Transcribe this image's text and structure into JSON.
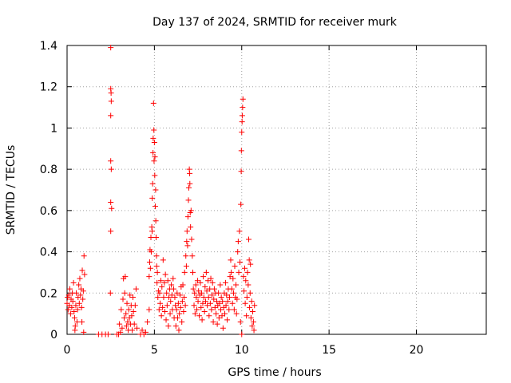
{
  "chart_data": {
    "type": "scatter",
    "title": "Day 137 of 2024, SRMTID for receiver murk",
    "xlabel": "GPS time / hours",
    "ylabel": "SRMTID / TECUs",
    "xlim": [
      0,
      24
    ],
    "ylim": [
      0,
      1.4
    ],
    "x_ticks": [
      0,
      5,
      10,
      15,
      20
    ],
    "x_tick_labels": [
      "0",
      "5",
      "10",
      "15",
      "20"
    ],
    "y_ticks": [
      0,
      0.2,
      0.4,
      0.6,
      0.8,
      1.0,
      1.2,
      1.4
    ],
    "y_tick_labels": [
      "0",
      "0.2",
      "0.4",
      "0.6",
      "0.8",
      "1",
      "1.2",
      "1.4"
    ],
    "grid": true,
    "marker": "plus",
    "color": "#ff0000",
    "series": [
      {
        "name": "",
        "points": [
          [
            0.0,
            0.15
          ],
          [
            0.03,
            0.18
          ],
          [
            0.06,
            0.12
          ],
          [
            0.1,
            0.19
          ],
          [
            0.13,
            0.14
          ],
          [
            0.16,
            0.22
          ],
          [
            0.2,
            0.1
          ],
          [
            0.23,
            0.17
          ],
          [
            0.27,
            0.13
          ],
          [
            0.3,
            0.2
          ],
          [
            0.33,
            0.16
          ],
          [
            0.37,
            0.25
          ],
          [
            0.4,
            0.11
          ],
          [
            0.43,
            0.08
          ],
          [
            0.47,
            0.04
          ],
          [
            0.5,
            0.14
          ],
          [
            0.53,
            0.2
          ],
          [
            0.57,
            0.06
          ],
          [
            0.6,
            0.12
          ],
          [
            0.63,
            0.18
          ],
          [
            0.67,
            0.24
          ],
          [
            0.7,
            0.15
          ],
          [
            0.73,
            0.27
          ],
          [
            0.77,
            0.19
          ],
          [
            0.8,
            0.22
          ],
          [
            0.83,
            0.13
          ],
          [
            0.87,
            0.31
          ],
          [
            0.9,
            0.17
          ],
          [
            0.93,
            0.21
          ],
          [
            0.97,
            0.38
          ],
          [
            1.0,
            0.29
          ],
          [
            0.95,
            0.01
          ],
          [
            0.85,
            0.06
          ],
          [
            0.45,
            0.02
          ],
          [
            1.8,
            0.0
          ],
          [
            2.0,
            0.0
          ],
          [
            2.2,
            0.0
          ],
          [
            2.35,
            0.0
          ],
          [
            2.5,
            1.39
          ],
          [
            2.5,
            1.19
          ],
          [
            2.52,
            1.17
          ],
          [
            2.53,
            1.13
          ],
          [
            2.5,
            1.06
          ],
          [
            2.5,
            0.84
          ],
          [
            2.53,
            0.8
          ],
          [
            2.5,
            0.64
          ],
          [
            2.55,
            0.61
          ],
          [
            2.5,
            0.5
          ],
          [
            2.48,
            0.2
          ],
          [
            2.85,
            0.0
          ],
          [
            2.95,
            0.0
          ],
          [
            3.0,
            0.05
          ],
          [
            3.05,
            0.01
          ],
          [
            3.1,
            0.12
          ],
          [
            3.15,
            0.03
          ],
          [
            3.2,
            0.17
          ],
          [
            3.23,
            0.27
          ],
          [
            3.27,
            0.08
          ],
          [
            3.3,
            0.2
          ],
          [
            3.33,
            0.28
          ],
          [
            3.37,
            0.1
          ],
          [
            3.4,
            0.04
          ],
          [
            3.43,
            0.15
          ],
          [
            3.47,
            0.06
          ],
          [
            3.5,
            0.02
          ],
          [
            3.53,
            0.12
          ],
          [
            3.57,
            0.08
          ],
          [
            3.6,
            0.19
          ],
          [
            3.63,
            0.05
          ],
          [
            3.67,
            0.14
          ],
          [
            3.7,
            0.09
          ],
          [
            3.73,
            0.02
          ],
          [
            3.77,
            0.18
          ],
          [
            3.8,
            0.11
          ],
          [
            3.85,
            0.05
          ],
          [
            3.9,
            0.14
          ],
          [
            3.95,
            0.22
          ],
          [
            4.0,
            0.03
          ],
          [
            4.2,
            0.0
          ],
          [
            4.3,
            0.02
          ],
          [
            4.4,
            0.0
          ],
          [
            4.5,
            0.01
          ],
          [
            4.6,
            0.06
          ],
          [
            4.7,
            0.12
          ],
          [
            4.7,
            0.28
          ],
          [
            4.73,
            0.35
          ],
          [
            4.75,
            0.41
          ],
          [
            4.77,
            0.32
          ],
          [
            4.8,
            0.47
          ],
          [
            4.82,
            0.4
          ],
          [
            4.85,
            0.52
          ],
          [
            4.87,
            0.5
          ],
          [
            4.88,
            0.66
          ],
          [
            4.9,
            0.73
          ],
          [
            4.92,
            0.88
          ],
          [
            4.93,
            0.95
          ],
          [
            4.95,
            1.12
          ],
          [
            4.97,
            0.99
          ],
          [
            4.98,
            0.84
          ],
          [
            5.0,
            0.93
          ],
          [
            5.02,
            0.77
          ],
          [
            5.03,
            0.86
          ],
          [
            5.05,
            0.62
          ],
          [
            5.07,
            0.7
          ],
          [
            5.08,
            0.55
          ],
          [
            5.1,
            0.47
          ],
          [
            5.12,
            0.38
          ],
          [
            5.13,
            0.33
          ],
          [
            5.15,
            0.25
          ],
          [
            5.17,
            0.3
          ],
          [
            5.2,
            0.18
          ],
          [
            5.23,
            0.21
          ],
          [
            5.27,
            0.12
          ],
          [
            5.3,
            0.2
          ],
          [
            5.33,
            0.15
          ],
          [
            5.37,
            0.26
          ],
          [
            5.4,
            0.09
          ],
          [
            5.43,
            0.23
          ],
          [
            5.47,
            0.13
          ],
          [
            5.5,
            0.36
          ],
          [
            5.53,
            0.18
          ],
          [
            5.57,
            0.25
          ],
          [
            5.6,
            0.11
          ],
          [
            5.63,
            0.29
          ],
          [
            5.67,
            0.07
          ],
          [
            5.7,
            0.2
          ],
          [
            5.73,
            0.14
          ],
          [
            5.77,
            0.26
          ],
          [
            5.8,
            0.04
          ],
          [
            5.83,
            0.18
          ],
          [
            5.87,
            0.22
          ],
          [
            5.9,
            0.1
          ],
          [
            5.93,
            0.16
          ],
          [
            5.97,
            0.24
          ],
          [
            6.0,
            0.19
          ],
          [
            6.03,
            0.12
          ],
          [
            6.07,
            0.27
          ],
          [
            6.1,
            0.22
          ],
          [
            6.13,
            0.08
          ],
          [
            6.17,
            0.18
          ],
          [
            6.2,
            0.14
          ],
          [
            6.23,
            0.04
          ],
          [
            6.27,
            0.12
          ],
          [
            6.3,
            0.2
          ],
          [
            6.33,
            0.08
          ],
          [
            6.37,
            0.15
          ],
          [
            6.4,
            0.02
          ],
          [
            6.43,
            0.1
          ],
          [
            6.47,
            0.19
          ],
          [
            6.5,
            0.13
          ],
          [
            6.53,
            0.23
          ],
          [
            6.57,
            0.06
          ],
          [
            6.6,
            0.16
          ],
          [
            6.63,
            0.24
          ],
          [
            6.67,
            0.11
          ],
          [
            6.7,
            0.18
          ],
          [
            6.73,
            0.3
          ],
          [
            6.77,
            0.14
          ],
          [
            6.8,
            0.38
          ],
          [
            6.83,
            0.33
          ],
          [
            6.85,
            0.45
          ],
          [
            6.87,
            0.5
          ],
          [
            6.9,
            0.43
          ],
          [
            6.92,
            0.57
          ],
          [
            6.95,
            0.65
          ],
          [
            6.97,
            0.71
          ],
          [
            7.0,
            0.8
          ],
          [
            7.02,
            0.78
          ],
          [
            7.03,
            0.73
          ],
          [
            7.05,
            0.59
          ],
          [
            7.07,
            0.52
          ],
          [
            7.1,
            0.6
          ],
          [
            7.13,
            0.46
          ],
          [
            7.17,
            0.38
          ],
          [
            7.2,
            0.3
          ],
          [
            7.23,
            0.22
          ],
          [
            7.27,
            0.14
          ],
          [
            7.3,
            0.2
          ],
          [
            7.33,
            0.1
          ],
          [
            7.37,
            0.24
          ],
          [
            7.4,
            0.18
          ],
          [
            7.43,
            0.12
          ],
          [
            7.47,
            0.26
          ],
          [
            7.5,
            0.16
          ],
          [
            7.53,
            0.21
          ],
          [
            7.57,
            0.09
          ],
          [
            7.6,
            0.19
          ],
          [
            7.63,
            0.25
          ],
          [
            7.67,
            0.13
          ],
          [
            7.7,
            0.2
          ],
          [
            7.73,
            0.07
          ],
          [
            7.77,
            0.15
          ],
          [
            7.8,
            0.28
          ],
          [
            7.83,
            0.18
          ],
          [
            7.87,
            0.11
          ],
          [
            7.9,
            0.23
          ],
          [
            7.93,
            0.16
          ],
          [
            7.97,
            0.3
          ],
          [
            8.0,
            0.21
          ],
          [
            8.03,
            0.14
          ],
          [
            8.07,
            0.26
          ],
          [
            8.1,
            0.18
          ],
          [
            8.13,
            0.09
          ],
          [
            8.17,
            0.22
          ],
          [
            8.2,
            0.15
          ],
          [
            8.23,
            0.27
          ],
          [
            8.27,
            0.12
          ],
          [
            8.3,
            0.19
          ],
          [
            8.33,
            0.25
          ],
          [
            8.37,
            0.06
          ],
          [
            8.4,
            0.17
          ],
          [
            8.43,
            0.22
          ],
          [
            8.47,
            0.13
          ],
          [
            8.5,
            0.2
          ],
          [
            8.53,
            0.1
          ],
          [
            8.57,
            0.16
          ],
          [
            8.6,
            0.05
          ],
          [
            8.63,
            0.14
          ],
          [
            8.67,
            0.2
          ],
          [
            8.7,
            0.08
          ],
          [
            8.73,
            0.15
          ],
          [
            8.77,
            0.24
          ],
          [
            8.8,
            0.12
          ],
          [
            8.83,
            0.18
          ],
          [
            8.87,
            0.09
          ],
          [
            8.9,
            0.16
          ],
          [
            8.93,
            0.03
          ],
          [
            8.97,
            0.13
          ],
          [
            9.0,
            0.2
          ],
          [
            9.03,
            0.1
          ],
          [
            9.07,
            0.25
          ],
          [
            9.1,
            0.14
          ],
          [
            9.13,
            0.19
          ],
          [
            9.17,
            0.07
          ],
          [
            9.2,
            0.16
          ],
          [
            9.23,
            0.22
          ],
          [
            9.27,
            0.12
          ],
          [
            9.3,
            0.18
          ],
          [
            9.33,
            0.28
          ],
          [
            9.37,
            0.36
          ],
          [
            9.4,
            0.3
          ],
          [
            9.43,
            0.22
          ],
          [
            9.47,
            0.15
          ],
          [
            9.5,
            0.27
          ],
          [
            9.53,
            0.2
          ],
          [
            9.57,
            0.12
          ],
          [
            9.6,
            0.33
          ],
          [
            9.63,
            0.18
          ],
          [
            9.67,
            0.24
          ],
          [
            9.7,
            0.1
          ],
          [
            9.73,
            0.17
          ],
          [
            9.77,
            0.4
          ],
          [
            9.8,
            0.45
          ],
          [
            9.83,
            0.3
          ],
          [
            9.87,
            0.5
          ],
          [
            9.9,
            0.35
          ],
          [
            9.93,
            0.06
          ],
          [
            9.95,
            0.63
          ],
          [
            9.97,
            0.79
          ],
          [
            9.98,
            0.89
          ],
          [
            10.0,
            0.98
          ],
          [
            10.02,
            1.03
          ],
          [
            10.03,
            1.06
          ],
          [
            10.05,
            1.1
          ],
          [
            10.07,
            1.14
          ],
          [
            10.0,
            0.0
          ],
          [
            10.1,
            0.28
          ],
          [
            10.13,
            0.21
          ],
          [
            10.17,
            0.32
          ],
          [
            10.2,
            0.15
          ],
          [
            10.23,
            0.26
          ],
          [
            10.27,
            0.09
          ],
          [
            10.3,
            0.18
          ],
          [
            10.33,
            0.3
          ],
          [
            10.37,
            0.24
          ],
          [
            10.4,
            0.46
          ],
          [
            10.43,
            0.36
          ],
          [
            10.45,
            0.13
          ],
          [
            10.48,
            0.2
          ],
          [
            10.5,
            0.34
          ],
          [
            10.53,
            0.08
          ],
          [
            10.57,
            0.16
          ],
          [
            10.6,
            0.04
          ],
          [
            10.63,
            0.11
          ],
          [
            10.67,
            0.06
          ],
          [
            10.7,
            0.02
          ],
          [
            10.73,
            0.14
          ]
        ]
      }
    ]
  }
}
